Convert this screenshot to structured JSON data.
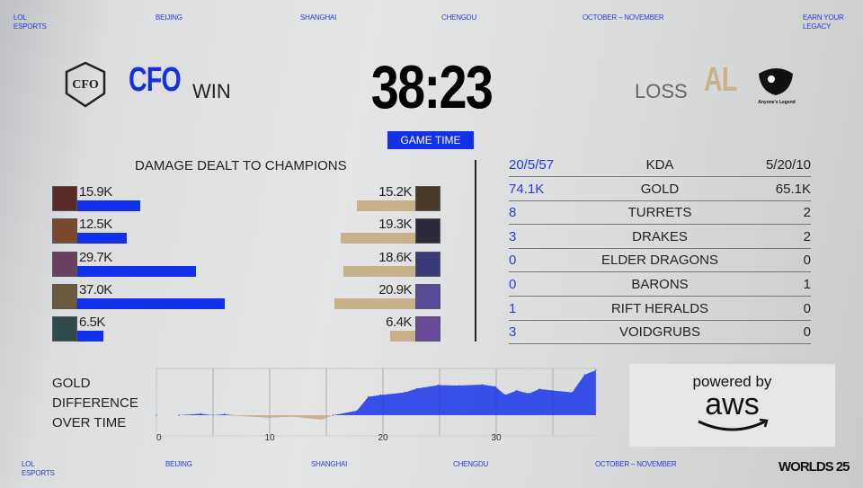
{
  "top_nav": [
    "LOL ESPORTS",
    "BEIJING",
    "SHANGHAI",
    "CHENGDU",
    "OCTOBER – NOVEMBER",
    "EARN YOUR LEGACY"
  ],
  "bottom_nav": [
    "LOL ESPORTS",
    "BEIJING",
    "SHANGHAI",
    "CHENGDU",
    "OCTOBER – NOVEMBER"
  ],
  "bottom_logo": "WORLDS 25",
  "left_team": {
    "name": "CFO",
    "result": "WIN",
    "logo_text": "CFO",
    "color": "#1230ea"
  },
  "right_team": {
    "name": "AL",
    "result": "LOSS",
    "logo_text": "Anyone's Legend",
    "color": "#c8b08a"
  },
  "timer": "38:23",
  "game_time_label": "GAME TIME",
  "damage": {
    "title": "DAMAGE DEALT TO CHAMPIONS",
    "left": [
      {
        "label": "15.9K",
        "value": 15.9
      },
      {
        "label": "12.5K",
        "value": 12.5
      },
      {
        "label": "29.7K",
        "value": 29.7
      },
      {
        "label": "37.0K",
        "value": 37.0
      },
      {
        "label": "6.5K",
        "value": 6.5
      }
    ],
    "right": [
      {
        "label": "15.2K",
        "value": 15.2
      },
      {
        "label": "19.3K",
        "value": 19.3
      },
      {
        "label": "18.6K",
        "value": 18.6
      },
      {
        "label": "20.9K",
        "value": 20.9
      },
      {
        "label": "6.4K",
        "value": 6.4
      }
    ]
  },
  "stats": [
    {
      "left": "20/5/57",
      "label": "KDA",
      "right": "5/20/10"
    },
    {
      "left": "74.1K",
      "label": "GOLD",
      "right": "65.1K"
    },
    {
      "left": "8",
      "label": "TURRETS",
      "right": "2"
    },
    {
      "left": "3",
      "label": "DRAKES",
      "right": "2"
    },
    {
      "left": "0",
      "label": "ELDER DRAGONS",
      "right": "0"
    },
    {
      "left": "0",
      "label": "BARONS",
      "right": "1"
    },
    {
      "left": "1",
      "label": "RIFT HERALDS",
      "right": "0"
    },
    {
      "left": "3",
      "label": "VOIDGRUBS",
      "right": "0"
    }
  ],
  "gold_chart": {
    "title_lines": [
      "GOLD",
      "DIFFERENCE",
      "OVER TIME"
    ],
    "ticks": [
      "0",
      "10",
      "20",
      "30"
    ]
  },
  "sponsor": {
    "line1": "powered by",
    "line2": "aws"
  },
  "chart_data": {
    "type": "area",
    "xlabel": "",
    "ylabel": "",
    "xlim": [
      0,
      39
    ],
    "grid": "vertical every 5",
    "x": [
      0,
      2,
      3.9,
      5,
      6,
      6.8,
      9.9,
      12,
      14.6,
      15.6,
      17.7,
      18.7,
      19.8,
      21.9,
      23,
      24.9,
      26.7,
      28.8,
      29.9,
      30.8,
      31.8,
      32.9,
      33.8,
      36.7,
      37.8,
      38.8
    ],
    "y": [
      0,
      0,
      300,
      0,
      200,
      -100,
      -500,
      -300,
      -900,
      0,
      900,
      3700,
      4100,
      4600,
      5400,
      6100,
      6000,
      6200,
      5800,
      4100,
      5000,
      4400,
      5300,
      4600,
      8200,
      9100
    ],
    "positive_color": "#1230ea",
    "negative_color": "#c8a882"
  }
}
